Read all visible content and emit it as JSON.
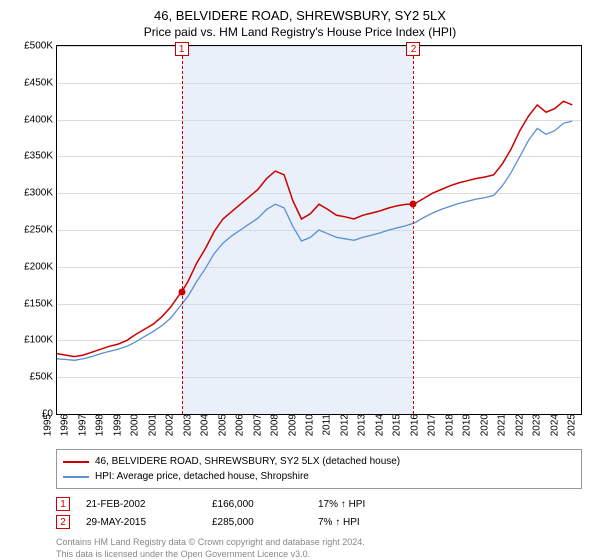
{
  "title": "46, BELVIDERE ROAD, SHREWSBURY, SY2 5LX",
  "subtitle": "Price paid vs. HM Land Registry's House Price Index (HPI)",
  "chart": {
    "type": "line",
    "background_color": "#ffffff",
    "grid_color": "#dcdcdc",
    "axis_color": "#000000",
    "y": {
      "min": 0,
      "max": 500000,
      "tick_step": 50000,
      "tick_labels": [
        "£0",
        "£50K",
        "£100K",
        "£150K",
        "£200K",
        "£250K",
        "£300K",
        "£350K",
        "£400K",
        "£450K",
        "£500K"
      ],
      "label_fontsize": 10
    },
    "x": {
      "min": 1995,
      "max": 2025,
      "ticks": [
        1995,
        1996,
        1997,
        1998,
        1999,
        2000,
        2001,
        2002,
        2003,
        2004,
        2005,
        2006,
        2007,
        2008,
        2009,
        2010,
        2011,
        2012,
        2013,
        2014,
        2015,
        2016,
        2017,
        2018,
        2019,
        2020,
        2021,
        2022,
        2023,
        2024,
        2025
      ],
      "label_fontsize": 10
    },
    "shaded_band": {
      "start": 2002.14,
      "end": 2015.41,
      "fill_color": "#c8daf0",
      "fill_opacity": 0.4
    },
    "series": [
      {
        "name": "property",
        "label": "46, BELVIDERE ROAD, SHREWSBURY, SY2 5LX (detached house)",
        "color": "#cc0000",
        "line_width": 1.5,
        "points": [
          [
            1995.0,
            82000
          ],
          [
            1995.5,
            80000
          ],
          [
            1996.0,
            78000
          ],
          [
            1996.5,
            80000
          ],
          [
            1997.0,
            84000
          ],
          [
            1997.5,
            88000
          ],
          [
            1998.0,
            92000
          ],
          [
            1998.5,
            95000
          ],
          [
            1999.0,
            100000
          ],
          [
            1999.5,
            108000
          ],
          [
            2000.0,
            115000
          ],
          [
            2000.5,
            122000
          ],
          [
            2001.0,
            132000
          ],
          [
            2001.5,
            145000
          ],
          [
            2002.0,
            162000
          ],
          [
            2002.14,
            166000
          ],
          [
            2002.5,
            180000
          ],
          [
            2003.0,
            205000
          ],
          [
            2003.5,
            225000
          ],
          [
            2004.0,
            248000
          ],
          [
            2004.5,
            265000
          ],
          [
            2005.0,
            275000
          ],
          [
            2005.5,
            285000
          ],
          [
            2006.0,
            295000
          ],
          [
            2006.5,
            305000
          ],
          [
            2007.0,
            320000
          ],
          [
            2007.5,
            330000
          ],
          [
            2008.0,
            325000
          ],
          [
            2008.5,
            290000
          ],
          [
            2009.0,
            265000
          ],
          [
            2009.5,
            272000
          ],
          [
            2010.0,
            285000
          ],
          [
            2010.5,
            278000
          ],
          [
            2011.0,
            270000
          ],
          [
            2011.5,
            268000
          ],
          [
            2012.0,
            265000
          ],
          [
            2012.5,
            270000
          ],
          [
            2013.0,
            273000
          ],
          [
            2013.5,
            276000
          ],
          [
            2014.0,
            280000
          ],
          [
            2014.5,
            283000
          ],
          [
            2015.0,
            285000
          ],
          [
            2015.41,
            285000
          ],
          [
            2015.5,
            286000
          ],
          [
            2016.0,
            293000
          ],
          [
            2016.5,
            300000
          ],
          [
            2017.0,
            305000
          ],
          [
            2017.5,
            310000
          ],
          [
            2018.0,
            314000
          ],
          [
            2018.5,
            317000
          ],
          [
            2019.0,
            320000
          ],
          [
            2019.5,
            322000
          ],
          [
            2020.0,
            325000
          ],
          [
            2020.5,
            340000
          ],
          [
            2021.0,
            360000
          ],
          [
            2021.5,
            385000
          ],
          [
            2022.0,
            405000
          ],
          [
            2022.5,
            420000
          ],
          [
            2023.0,
            410000
          ],
          [
            2023.5,
            415000
          ],
          [
            2024.0,
            425000
          ],
          [
            2024.5,
            420000
          ]
        ]
      },
      {
        "name": "hpi",
        "label": "HPI: Average price, detached house, Shropshire",
        "color": "#5b8fd6",
        "line_width": 1.3,
        "points": [
          [
            1995.0,
            75000
          ],
          [
            1995.5,
            74000
          ],
          [
            1996.0,
            73000
          ],
          [
            1996.5,
            75000
          ],
          [
            1997.0,
            78000
          ],
          [
            1997.5,
            82000
          ],
          [
            1998.0,
            85000
          ],
          [
            1998.5,
            88000
          ],
          [
            1999.0,
            92000
          ],
          [
            1999.5,
            98000
          ],
          [
            2000.0,
            105000
          ],
          [
            2000.5,
            112000
          ],
          [
            2001.0,
            120000
          ],
          [
            2001.5,
            130000
          ],
          [
            2002.0,
            145000
          ],
          [
            2002.5,
            160000
          ],
          [
            2003.0,
            180000
          ],
          [
            2003.5,
            198000
          ],
          [
            2004.0,
            218000
          ],
          [
            2004.5,
            232000
          ],
          [
            2005.0,
            242000
          ],
          [
            2005.5,
            250000
          ],
          [
            2006.0,
            258000
          ],
          [
            2006.5,
            266000
          ],
          [
            2007.0,
            278000
          ],
          [
            2007.5,
            285000
          ],
          [
            2008.0,
            280000
          ],
          [
            2008.5,
            255000
          ],
          [
            2009.0,
            235000
          ],
          [
            2009.5,
            240000
          ],
          [
            2010.0,
            250000
          ],
          [
            2010.5,
            245000
          ],
          [
            2011.0,
            240000
          ],
          [
            2011.5,
            238000
          ],
          [
            2012.0,
            236000
          ],
          [
            2012.5,
            240000
          ],
          [
            2013.0,
            243000
          ],
          [
            2013.5,
            246000
          ],
          [
            2014.0,
            250000
          ],
          [
            2014.5,
            253000
          ],
          [
            2015.0,
            256000
          ],
          [
            2015.5,
            260000
          ],
          [
            2016.0,
            267000
          ],
          [
            2016.5,
            273000
          ],
          [
            2017.0,
            278000
          ],
          [
            2017.5,
            282000
          ],
          [
            2018.0,
            286000
          ],
          [
            2018.5,
            289000
          ],
          [
            2019.0,
            292000
          ],
          [
            2019.5,
            294000
          ],
          [
            2020.0,
            297000
          ],
          [
            2020.5,
            310000
          ],
          [
            2021.0,
            328000
          ],
          [
            2021.5,
            350000
          ],
          [
            2022.0,
            372000
          ],
          [
            2022.5,
            388000
          ],
          [
            2023.0,
            380000
          ],
          [
            2023.5,
            385000
          ],
          [
            2024.0,
            395000
          ],
          [
            2024.5,
            398000
          ]
        ]
      }
    ],
    "sale_markers": [
      {
        "num": "1",
        "x": 2002.14,
        "y": 166000,
        "dot_color": "#cc0000",
        "line_color": "#cc0000"
      },
      {
        "num": "2",
        "x": 2015.41,
        "y": 285000,
        "dot_color": "#cc0000",
        "line_color": "#cc0000"
      }
    ]
  },
  "legend": {
    "items": [
      {
        "color": "#cc0000",
        "bind": "chart.series.0.label"
      },
      {
        "color": "#5b8fd6",
        "bind": "chart.series.1.label"
      }
    ]
  },
  "sales_table": {
    "rows": [
      {
        "num": "1",
        "date": "21-FEB-2002",
        "price": "£166,000",
        "pct": "17% ↑ HPI"
      },
      {
        "num": "2",
        "date": "29-MAY-2015",
        "price": "£285,000",
        "pct": "7% ↑ HPI"
      }
    ]
  },
  "footnote_line1": "Contains HM Land Registry data © Crown copyright and database right 2024.",
  "footnote_line2": "This data is licensed under the Open Government Licence v3.0."
}
